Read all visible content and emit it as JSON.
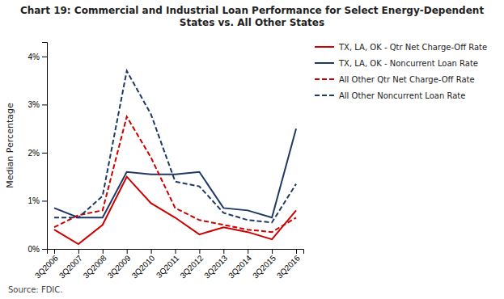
{
  "chart_data": {
    "type": "line",
    "title": "Chart 19: Commercial and Industrial Loan Performance for Select Energy-Dependent States vs. All Other States",
    "y_label": "Median Percentage",
    "annotations": [
      "Source: FDIC."
    ],
    "categories": [
      "3Q2006",
      "3Q2007",
      "3Q2008",
      "3Q2009",
      "3Q2010",
      "3Q2011",
      "3Q2012",
      "3Q2013",
      "3Q2014",
      "3Q2015",
      "3Q2016"
    ],
    "series": [
      {
        "name": "TX, LA, OK - Qtr Net Charge-Off Rate",
        "color": "#cc0000",
        "line_style": "solid",
        "values": [
          0.4,
          0.1,
          0.5,
          1.5,
          0.95,
          0.65,
          0.3,
          0.45,
          0.35,
          0.2,
          0.8
        ]
      },
      {
        "name": "TX, LA, OK - Noncurrent Loan Rate",
        "color": "#1f3864",
        "line_style": "solid",
        "values": [
          0.85,
          0.65,
          0.65,
          1.6,
          1.55,
          1.55,
          1.6,
          0.85,
          0.8,
          0.65,
          2.5
        ]
      },
      {
        "name": "All Other Qtr Net Charge-Off Rate",
        "color": "#cc0000",
        "line_style": "dashed",
        "values": [
          0.45,
          0.7,
          0.8,
          2.75,
          1.9,
          0.85,
          0.6,
          0.5,
          0.4,
          0.35,
          0.65
        ]
      },
      {
        "name": "All Other Noncurrent Loan Rate",
        "color": "#1f3864",
        "line_style": "dashed",
        "values": [
          0.65,
          0.65,
          1.1,
          3.7,
          2.8,
          1.4,
          1.3,
          0.75,
          0.6,
          0.55,
          1.35
        ]
      }
    ],
    "ylim": [
      0,
      4.3
    ],
    "yticks": [
      {
        "value": 0,
        "label": "0%"
      },
      {
        "value": 1,
        "label": "1%"
      },
      {
        "value": 2,
        "label": "2%"
      },
      {
        "value": 3,
        "label": "3%"
      },
      {
        "value": 4,
        "label": "4%"
      }
    ],
    "grid": false,
    "legend": "right"
  }
}
